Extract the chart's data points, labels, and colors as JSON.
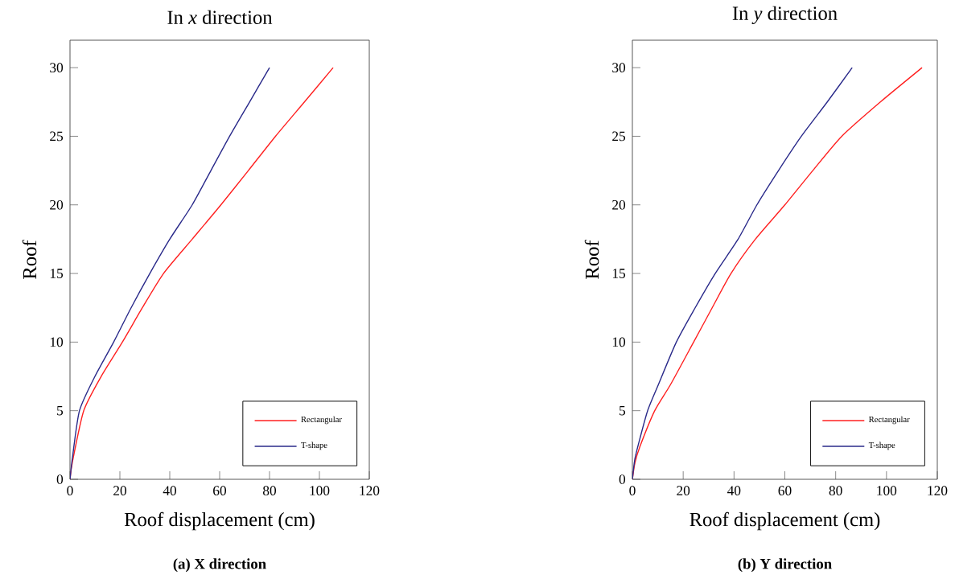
{
  "chart_data": [
    {
      "type": "line",
      "title": "In *x* direction",
      "xlabel": "Roof displacement (cm)",
      "ylabel": "Roof",
      "xlim": [
        0,
        120
      ],
      "ylim": [
        0,
        32
      ],
      "xticks": [
        0,
        20,
        40,
        60,
        80,
        100,
        120
      ],
      "yticks": [
        0,
        5,
        10,
        15,
        20,
        25,
        30
      ],
      "legend": "bottom right",
      "line_style": "solid",
      "marker": "none",
      "grid": false,
      "annotations": [
        "(a) X direction"
      ],
      "series": [
        {
          "name": "Rectangular",
          "color": "#ff2020",
          "x": [
            0,
            1,
            5.5,
            12.5,
            21,
            29,
            37.5,
            49,
            60.5,
            71.5,
            82.4,
            94,
            105.5
          ],
          "values": [
            0,
            1.3,
            5,
            7.5,
            10,
            12.5,
            15,
            17.5,
            20,
            22.5,
            25,
            27.5,
            30
          ]
        },
        {
          "name": "T-shape",
          "color": "#2a2a8a",
          "x": [
            0,
            1,
            3.8,
            10,
            17.5,
            24.5,
            32,
            40,
            49,
            56.5,
            64,
            72,
            80
          ],
          "values": [
            0,
            1.6,
            5,
            7.5,
            10,
            12.5,
            15,
            17.5,
            20,
            22.5,
            25,
            27.5,
            30
          ]
        }
      ]
    },
    {
      "type": "line",
      "title": "In *y* direction",
      "xlabel": "Roof displacement (cm)",
      "ylabel": "Roof",
      "xlim": [
        0,
        120
      ],
      "ylim": [
        0,
        32
      ],
      "xticks": [
        0,
        20,
        40,
        60,
        80,
        100,
        120
      ],
      "yticks": [
        0,
        5,
        10,
        15,
        20,
        25,
        30
      ],
      "legend": "bottom right",
      "line_style": "solid",
      "marker": "none",
      "grid": false,
      "annotations": [
        "(b) Y direction"
      ],
      "series": [
        {
          "name": "Rectangular",
          "color": "#ff2020",
          "x": [
            0,
            1,
            3,
            8.8,
            15,
            24.1,
            31.4,
            38.8,
            48.4,
            60,
            71,
            82.4,
            97.6,
            114
          ],
          "values": [
            0,
            1.2,
            2.4,
            5,
            6.9,
            10,
            12.5,
            15,
            17.5,
            20,
            22.5,
            25,
            27.5,
            30
          ]
        },
        {
          "name": "T-shape",
          "color": "#2a2a8a",
          "x": [
            0,
            1,
            3,
            6,
            10,
            17.3,
            24.7,
            32.6,
            41.6,
            49,
            57.5,
            66.5,
            76.7,
            86.5
          ],
          "values": [
            0,
            1.5,
            3.0,
            5,
            6.8,
            10,
            12.5,
            15,
            17.5,
            20,
            22.5,
            25,
            27.5,
            30
          ]
        }
      ]
    }
  ]
}
